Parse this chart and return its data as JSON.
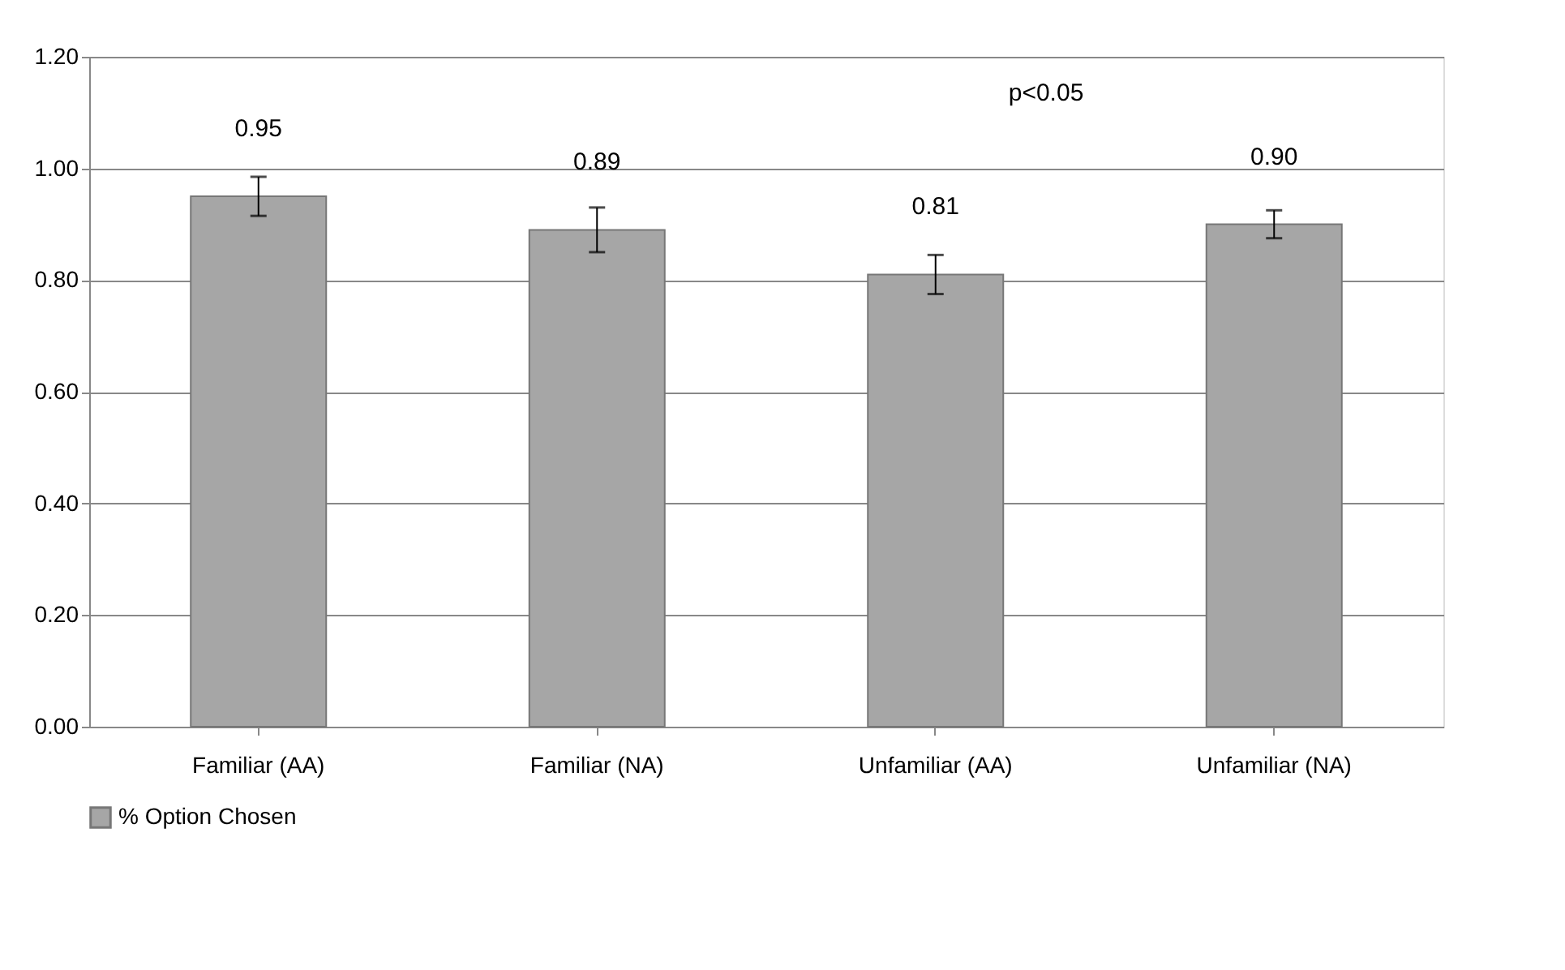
{
  "chart_data": {
    "type": "bar",
    "categories": [
      "Familiar (AA)",
      "Familiar (NA)",
      "Unfamiliar (AA)",
      "Unfamiliar (NA)"
    ],
    "series": [
      {
        "name": "% Option Chosen",
        "color": "#a6a6a6",
        "values": [
          0.95,
          0.89,
          0.81,
          0.9
        ],
        "errors": [
          0.035,
          0.04,
          0.035,
          0.025
        ]
      }
    ],
    "value_labels": [
      "0.95",
      "0.89",
      "0.81",
      "0.90"
    ],
    "ylim": [
      0,
      1.2
    ],
    "yticks": [
      {
        "value": 0,
        "label": "0.00"
      },
      {
        "value": 0.2,
        "label": "0.20"
      },
      {
        "value": 0.4,
        "label": "0.40"
      },
      {
        "value": 0.6,
        "label": "0.60"
      },
      {
        "value": 0.8,
        "label": "0.80"
      },
      {
        "value": 1.0,
        "label": "1.00"
      },
      {
        "value": 1.2,
        "label": "1.20"
      }
    ],
    "grid": "y",
    "legend": "bottom",
    "annotations": [
      "p<0.05"
    ]
  }
}
